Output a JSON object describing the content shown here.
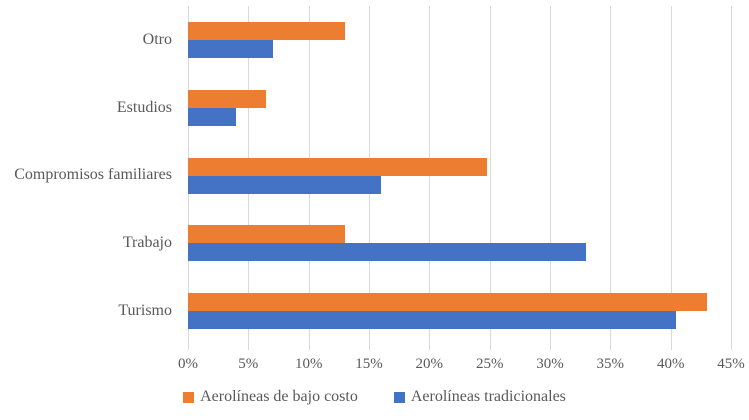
{
  "chart_data": {
    "type": "bar",
    "orientation": "horizontal",
    "categories": [
      "Otro",
      "Estudios",
      "Compromisos familiares",
      "Trabajo",
      "Turismo"
    ],
    "series": [
      {
        "name": "Aerolíneas de bajo costo",
        "color": "#ED7D31",
        "values": [
          13,
          6.5,
          24.8,
          13,
          43
        ]
      },
      {
        "name": "Aerolíneas tradicionales",
        "color": "#4472C4",
        "values": [
          7,
          4,
          16,
          33,
          40.4
        ]
      }
    ],
    "x_axis": {
      "min": 0,
      "max": 45,
      "step": 5,
      "ticks": [
        "0%",
        "5%",
        "10%",
        "15%",
        "20%",
        "25%",
        "30%",
        "35%",
        "40%",
        "45%"
      ]
    },
    "grid": true,
    "legend_position": "bottom",
    "title": "",
    "xlabel": "",
    "ylabel": ""
  },
  "colors": {
    "gridline": "#D9D9D9",
    "text": "#595959",
    "background": "#FFFFFF"
  }
}
